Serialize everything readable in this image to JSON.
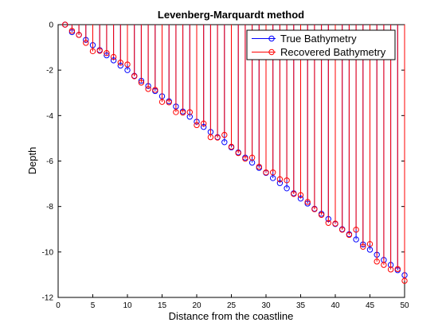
{
  "chart_data": {
    "type": "line",
    "title": "Levenberg-Marquardt method",
    "xlabel": "Distance from the coastline",
    "ylabel": "Depth",
    "xlim": [
      0,
      50
    ],
    "ylim": [
      -12,
      0
    ],
    "x_ticks": [
      "0",
      "5",
      "10",
      "15",
      "20",
      "25",
      "30",
      "35",
      "40",
      "45",
      "50"
    ],
    "y_ticks": [
      "0",
      "-2",
      "-4",
      "-6",
      "-8",
      "-10",
      "-12"
    ],
    "x_tick_values": [
      0,
      5,
      10,
      15,
      20,
      25,
      30,
      35,
      40,
      45,
      50
    ],
    "y_tick_values": [
      0,
      -2,
      -4,
      -6,
      -8,
      -10,
      -12
    ],
    "grid": false,
    "legend_position": "top-right",
    "x": [
      1,
      2,
      3,
      4,
      5,
      6,
      7,
      8,
      9,
      10,
      11,
      12,
      13,
      14,
      15,
      16,
      17,
      18,
      19,
      20,
      21,
      22,
      23,
      24,
      25,
      26,
      27,
      28,
      29,
      30,
      31,
      32,
      33,
      34,
      35,
      36,
      37,
      38,
      39,
      40,
      41,
      42,
      43,
      44,
      45,
      46,
      47,
      48,
      49,
      50
    ],
    "series": [
      {
        "name": "True Bathymetry",
        "color": "#0000ff",
        "marker": "circle",
        "values": [
          0.0,
          -0.33,
          -0.45,
          -0.67,
          -0.9,
          -1.12,
          -1.35,
          -1.57,
          -1.8,
          -2.0,
          -2.25,
          -2.47,
          -2.7,
          -2.92,
          -3.15,
          -3.37,
          -3.6,
          -3.82,
          -4.05,
          -4.27,
          -4.5,
          -4.72,
          -4.95,
          -5.17,
          -5.4,
          -5.62,
          -5.85,
          -6.07,
          -6.3,
          -6.52,
          -6.75,
          -6.97,
          -7.2,
          -7.42,
          -7.65,
          -7.87,
          -8.1,
          -8.32,
          -8.55,
          -8.77,
          -9.0,
          -9.22,
          -9.45,
          -9.67,
          -9.9,
          -10.12,
          -10.35,
          -10.57,
          -10.8,
          -11.02
        ]
      },
      {
        "name": "Recovered Bathymetry",
        "color": "#ff0000",
        "marker": "circle",
        "values": [
          0.0,
          -0.27,
          -0.45,
          -0.8,
          -1.17,
          -1.15,
          -1.25,
          -1.42,
          -1.67,
          -1.75,
          -2.27,
          -2.55,
          -2.83,
          -2.87,
          -3.4,
          -3.42,
          -3.85,
          -3.87,
          -3.85,
          -4.42,
          -4.35,
          -4.95,
          -4.97,
          -4.85,
          -5.37,
          -5.65,
          -5.9,
          -5.85,
          -6.25,
          -6.5,
          -6.5,
          -6.8,
          -6.85,
          -7.45,
          -7.5,
          -7.8,
          -8.12,
          -8.37,
          -8.72,
          -8.75,
          -9.02,
          -9.25,
          -9.02,
          -9.77,
          -9.65,
          -10.42,
          -10.57,
          -10.77,
          -10.75,
          -11.27
        ]
      }
    ]
  }
}
